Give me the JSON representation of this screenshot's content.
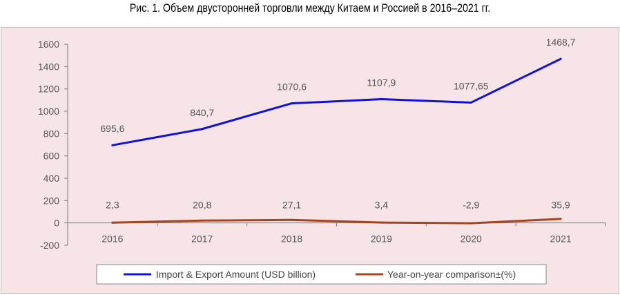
{
  "figure_caption": "Рис. 1. Объем двусторонней торговли между Китаем и Россией в 2016–2021 гг.",
  "colors": {
    "background": "#f7e4e6",
    "import_export_line": "#1010e6",
    "yoy_line": "#a9441a",
    "axis": "#7a7a7a",
    "text": "#555555"
  },
  "chart_data": {
    "type": "line",
    "title": "",
    "xlabel": "",
    "ylabel": "",
    "categories": [
      "2016",
      "2017",
      "2018",
      "2019",
      "2020",
      "2021"
    ],
    "ylim": [
      -200,
      1600
    ],
    "yticks": [
      "-200",
      "0",
      "200",
      "400",
      "600",
      "800",
      "1000",
      "1200",
      "1400",
      "1600"
    ],
    "grid": false,
    "legend_position": "bottom",
    "series": [
      {
        "name": "Import & Export Amount (USD billion)",
        "values": [
          695.6,
          840.7,
          1070.6,
          1107.9,
          1077.65,
          1468.7
        ],
        "labels": [
          "695,6",
          "840,7",
          "1070,6",
          "1107,9",
          "1077,65",
          "1468,7"
        ]
      },
      {
        "name": "Year-on-year comparison±(%)",
        "values": [
          2.3,
          20.8,
          27.1,
          3.4,
          -2.9,
          35.9
        ],
        "labels": [
          "2,3",
          "20,8",
          "27,1",
          "3,4",
          "-2,9",
          "35,9"
        ]
      }
    ]
  }
}
